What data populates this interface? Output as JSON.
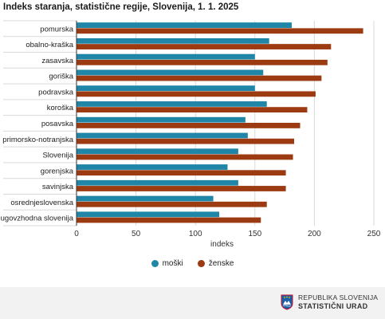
{
  "chart_data": {
    "type": "bar",
    "orientation": "horizontal",
    "title": "Indeks staranja, statistične regije, Slovenija, 1. 1. 2025",
    "xlabel": "indeks",
    "xlim": [
      0,
      250
    ],
    "xticks": [
      0,
      50,
      100,
      150,
      200,
      250
    ],
    "categories": [
      "pomurska",
      "obalno-kraška",
      "zasavska",
      "goriška",
      "podravska",
      "koroška",
      "posavska",
      "primorsko-notranjska",
      "Slovenija",
      "gorenjska",
      "savinjska",
      "osrednjeslovenska",
      "jugovzhodna slovenija"
    ],
    "series": [
      {
        "name": "moški",
        "color": "#1f86a8",
        "values": [
          181,
          162,
          150,
          157,
          150,
          160,
          142,
          144,
          136,
          127,
          136,
          115,
          120
        ]
      },
      {
        "name": "ženske",
        "color": "#9c3a12",
        "values": [
          241,
          214,
          211,
          206,
          201,
          194,
          188,
          183,
          182,
          176,
          176,
          160,
          155
        ]
      }
    ],
    "legend_position": "bottom",
    "grid": "vertical"
  },
  "footer": {
    "line1": "REPUBLIKA SLOVENIJA",
    "line2": "STATISTIČNI URAD",
    "logo_icon": "coat-of-arms-icon"
  }
}
